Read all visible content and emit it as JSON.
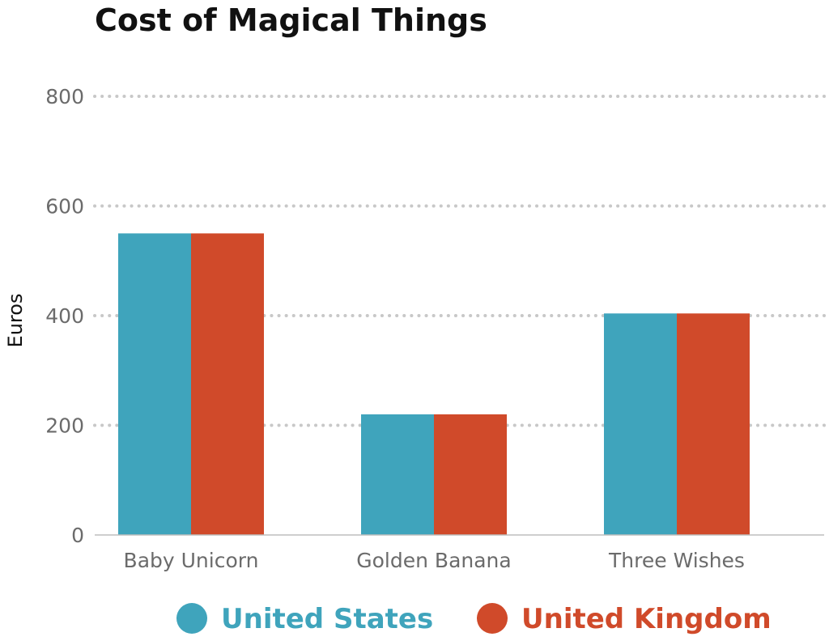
{
  "chart_data": {
    "type": "bar",
    "title": "Cost of Magical Things",
    "xlabel": "",
    "ylabel": "Euros",
    "categories": [
      "Baby Unicorn",
      "Golden Banana",
      "Three Wishes"
    ],
    "series": [
      {
        "name": "United States",
        "color": "#3fa4bc",
        "values": [
          550,
          220,
          404
        ]
      },
      {
        "name": "United Kingdom",
        "color": "#d04a2a",
        "values": [
          550,
          220,
          404
        ]
      }
    ],
    "ylim": [
      0,
      800
    ],
    "yticks": [
      "0",
      "200",
      "400",
      "600",
      "800"
    ],
    "grid": true,
    "legend_position": "bottom"
  }
}
